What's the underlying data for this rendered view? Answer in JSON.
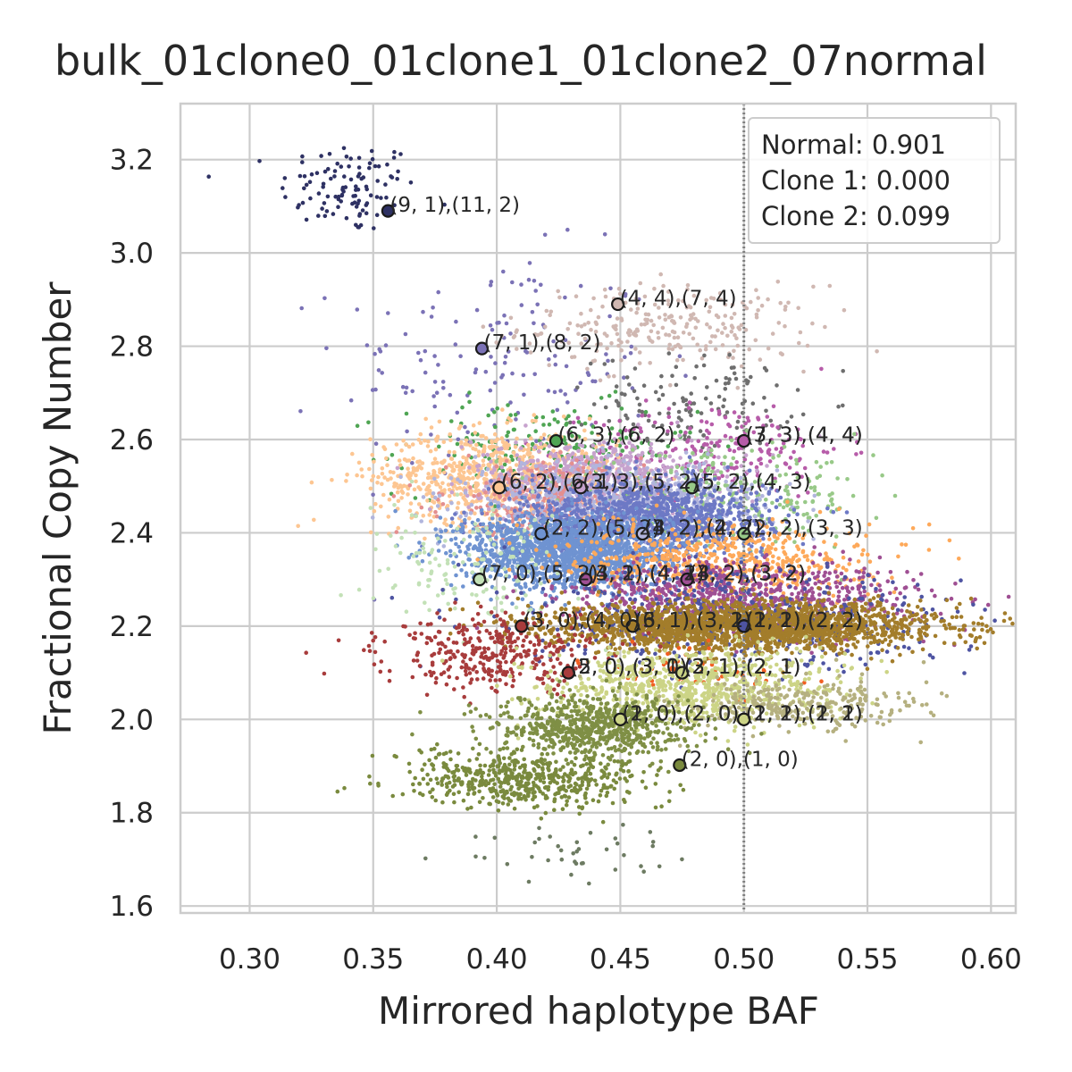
{
  "chart_data": {
    "type": "scatter",
    "title": "bulk_01clone0_01clone1_01clone2_07normal",
    "xlabel": "Mirrored haplotype BAF",
    "ylabel": "Fractional Copy Number",
    "xlim": [
      0.272,
      0.61
    ],
    "ylim": [
      1.585,
      3.32
    ],
    "xticks": [
      0.3,
      0.35,
      0.4,
      0.45,
      0.5,
      0.55,
      0.6
    ],
    "xtick_labels": [
      "0.30",
      "0.35",
      "0.40",
      "0.45",
      "0.50",
      "0.55",
      "0.60"
    ],
    "yticks": [
      1.6,
      1.8,
      2.0,
      2.2,
      2.4,
      2.6,
      2.8,
      3.0,
      3.2
    ],
    "ytick_labels": [
      "1.6",
      "1.8",
      "2.0",
      "2.2",
      "2.4",
      "2.6",
      "2.8",
      "3.0",
      "3.2"
    ],
    "grid": true,
    "reference_line": {
      "x": 0.5,
      "style": "dotted"
    },
    "legend": {
      "placement": "top-right",
      "entries": [
        "Normal: 0.901",
        "Clone 1: 0.000",
        "Clone 2: 0.099"
      ]
    },
    "clusters": [
      {
        "color": "#2e3163",
        "cx": 0.34,
        "cy": 3.14,
        "sx": 0.014,
        "sy": 0.05,
        "n": 110
      },
      {
        "color": "#7b72b6",
        "cx": 0.4,
        "cy": 2.76,
        "sx": 0.032,
        "sy": 0.12,
        "n": 150
      },
      {
        "color": "#d0b8b2",
        "cx": 0.47,
        "cy": 2.84,
        "sx": 0.03,
        "sy": 0.045,
        "n": 260
      },
      {
        "color": "#6e6e6e",
        "cx": 0.48,
        "cy": 2.68,
        "sx": 0.02,
        "sy": 0.05,
        "n": 130
      },
      {
        "color": "#4fa553",
        "cx": 0.42,
        "cy": 2.58,
        "sx": 0.03,
        "sy": 0.05,
        "n": 200
      },
      {
        "color": "#b75ca9",
        "cx": 0.49,
        "cy": 2.58,
        "sx": 0.025,
        "sy": 0.05,
        "n": 200
      },
      {
        "color": "#fdc692",
        "cx": 0.4,
        "cy": 2.52,
        "sx": 0.025,
        "sy": 0.05,
        "n": 800
      },
      {
        "color": "#c7a3ce",
        "cx": 0.44,
        "cy": 2.52,
        "sx": 0.025,
        "sy": 0.04,
        "n": 600
      },
      {
        "color": "#e48f8f",
        "cx": 0.42,
        "cy": 2.47,
        "sx": 0.02,
        "sy": 0.04,
        "n": 300
      },
      {
        "color": "#98c988",
        "cx": 0.49,
        "cy": 2.47,
        "sx": 0.03,
        "sy": 0.05,
        "n": 300
      },
      {
        "color": "#b1b5dd",
        "cx": 0.45,
        "cy": 2.47,
        "sx": 0.03,
        "sy": 0.04,
        "n": 600
      },
      {
        "color": "#6d79c5",
        "cx": 0.46,
        "cy": 2.43,
        "sx": 0.025,
        "sy": 0.04,
        "n": 1200
      },
      {
        "color": "#6f93d1",
        "cx": 0.43,
        "cy": 2.36,
        "sx": 0.022,
        "sy": 0.04,
        "n": 1600
      },
      {
        "color": "#c3e1b7",
        "cx": 0.39,
        "cy": 2.32,
        "sx": 0.02,
        "sy": 0.06,
        "n": 150
      },
      {
        "color": "#fea95a",
        "cx": 0.49,
        "cy": 2.34,
        "sx": 0.03,
        "sy": 0.04,
        "n": 600
      },
      {
        "color": "#9f4f93",
        "cx": 0.5,
        "cy": 2.26,
        "sx": 0.035,
        "sy": 0.04,
        "n": 800
      },
      {
        "color": "#4e54a2",
        "cx": 0.5,
        "cy": 2.21,
        "sx": 0.045,
        "sy": 0.05,
        "n": 500
      },
      {
        "color": "#a37d2b",
        "cx": 0.5,
        "cy": 2.2,
        "sx": 0.038,
        "sy": 0.025,
        "n": 2200
      },
      {
        "color": "#a83c3c",
        "cx": 0.4,
        "cy": 2.14,
        "sx": 0.022,
        "sy": 0.04,
        "n": 350
      },
      {
        "color": "#f15f22",
        "cx": 0.48,
        "cy": 2.1,
        "sx": 0.02,
        "sy": 0.025,
        "n": 60
      },
      {
        "color": "#ccd486",
        "cx": 0.48,
        "cy": 2.07,
        "sx": 0.028,
        "sy": 0.04,
        "n": 800
      },
      {
        "color": "#b5b080",
        "cx": 0.52,
        "cy": 2.03,
        "sx": 0.025,
        "sy": 0.03,
        "n": 300
      },
      {
        "color": "#7f8f45",
        "cx": 0.44,
        "cy": 1.98,
        "sx": 0.02,
        "sy": 0.035,
        "n": 700
      },
      {
        "color": "#7a8a3e",
        "cx": 0.41,
        "cy": 1.87,
        "sx": 0.025,
        "sy": 0.03,
        "n": 550
      },
      {
        "color": "#6d7b62",
        "cx": 0.44,
        "cy": 1.71,
        "sx": 0.03,
        "sy": 0.03,
        "n": 40
      }
    ],
    "markers": [
      {
        "x": 0.356,
        "y": 3.09,
        "fill": "#2e3163",
        "label": "(9, 1),(11, 2)"
      },
      {
        "x": 0.449,
        "y": 2.89,
        "fill": "#d0b8b2",
        "label": "(4, 4),(7, 4)"
      },
      {
        "x": 0.394,
        "y": 2.795,
        "fill": "#7b72b6",
        "label": "(7, 1),(8, 2)"
      },
      {
        "x": 0.424,
        "y": 2.597,
        "fill": "#4fa553",
        "label": "(6, 3),(6, 2)"
      },
      {
        "x": 0.5,
        "y": 2.597,
        "fill": "#6e6e6e",
        "label": "(7, 3),(4, 4)"
      },
      {
        "x": 0.5,
        "y": 2.597,
        "fill": "#b75ca9",
        "label": "(3, 3),(4, 4)"
      },
      {
        "x": 0.401,
        "y": 2.497,
        "fill": "#fdc692",
        "label": "(6, 2),(6, 1)"
      },
      {
        "x": 0.434,
        "y": 2.497,
        "fill": "#c7a3ce",
        "label": "(3, 3),(5, 2)"
      },
      {
        "x": 0.479,
        "y": 2.497,
        "fill": "#98c988",
        "label": "(5, 2),(4, 3)"
      },
      {
        "x": 0.418,
        "y": 2.398,
        "fill": "#6f93d1",
        "label": "(2, 2),(5, 2)"
      },
      {
        "x": 0.459,
        "y": 2.398,
        "fill": "#6d79c5",
        "label": "(4, 2),(4, 2)"
      },
      {
        "x": 0.459,
        "y": 2.398,
        "fill": "#b1b5dd",
        "label": "(3, 2),(2, 2)"
      },
      {
        "x": 0.5,
        "y": 2.398,
        "fill": "#98c988",
        "label": "(2, 2),(3, 3)"
      },
      {
        "x": 0.393,
        "y": 2.3,
        "fill": "#c3e1b7",
        "label": "(7, 0),(5, 2)"
      },
      {
        "x": 0.436,
        "y": 2.3,
        "fill": "#6f93d1",
        "label": "(4, 2),(4, 2)"
      },
      {
        "x": 0.436,
        "y": 2.3,
        "fill": "#9f4f93",
        "label": "(3, 1),(4, 1)"
      },
      {
        "x": 0.477,
        "y": 2.3,
        "fill": "#fea95a",
        "label": "(3, 2),(3, 2)"
      },
      {
        "x": 0.477,
        "y": 2.3,
        "fill": "#9f4f93",
        "label": "(4, 2),(3, 2)"
      },
      {
        "x": 0.41,
        "y": 2.2,
        "fill": "#a83c3c",
        "label": "(3, 0),(4, 0)"
      },
      {
        "x": 0.455,
        "y": 2.2,
        "fill": "#6f93d1",
        "label": "(6, 1),(3, 1)"
      },
      {
        "x": 0.455,
        "y": 2.2,
        "fill": "#a37d2b",
        "label": "(3, 1),(3, 2)"
      },
      {
        "x": 0.5,
        "y": 2.2,
        "fill": "#a37d2b",
        "label": "(2, 2),(2, 2)"
      },
      {
        "x": 0.5,
        "y": 2.2,
        "fill": "#b1b5dd",
        "label": "(1, 1),(2, 2)"
      },
      {
        "x": 0.5,
        "y": 2.2,
        "fill": "#4e54a2",
        "label": "(2, 2),(2, 2)"
      },
      {
        "x": 0.429,
        "y": 2.1,
        "fill": "#4e54a2",
        "label": "(5, 0),(3, 1)"
      },
      {
        "x": 0.429,
        "y": 2.1,
        "fill": "#a83c3c",
        "label": "(2, 0),(3, 0)"
      },
      {
        "x": 0.475,
        "y": 2.1,
        "fill": "#f15f22",
        "label": "(2, 1),(2, 1)"
      },
      {
        "x": 0.475,
        "y": 2.1,
        "fill": "#ccd486",
        "label": "(3, 1),(2, 1)"
      },
      {
        "x": 0.45,
        "y": 2.0,
        "fill": "#7f8f45",
        "label": "(2, 0),(2, 0)"
      },
      {
        "x": 0.45,
        "y": 2.0,
        "fill": "#ccd486",
        "label": "(1, 0),(2, 0)"
      },
      {
        "x": 0.5,
        "y": 2.0,
        "fill": "#b5b080",
        "label": "(2, 2),(1, 1)"
      },
      {
        "x": 0.5,
        "y": 2.0,
        "fill": "#ccd486",
        "label": "(1, 1),(2, 2)"
      },
      {
        "x": 0.474,
        "y": 1.902,
        "fill": "#7a8a3e",
        "label": "(2, 0),(1, 0)"
      }
    ]
  }
}
